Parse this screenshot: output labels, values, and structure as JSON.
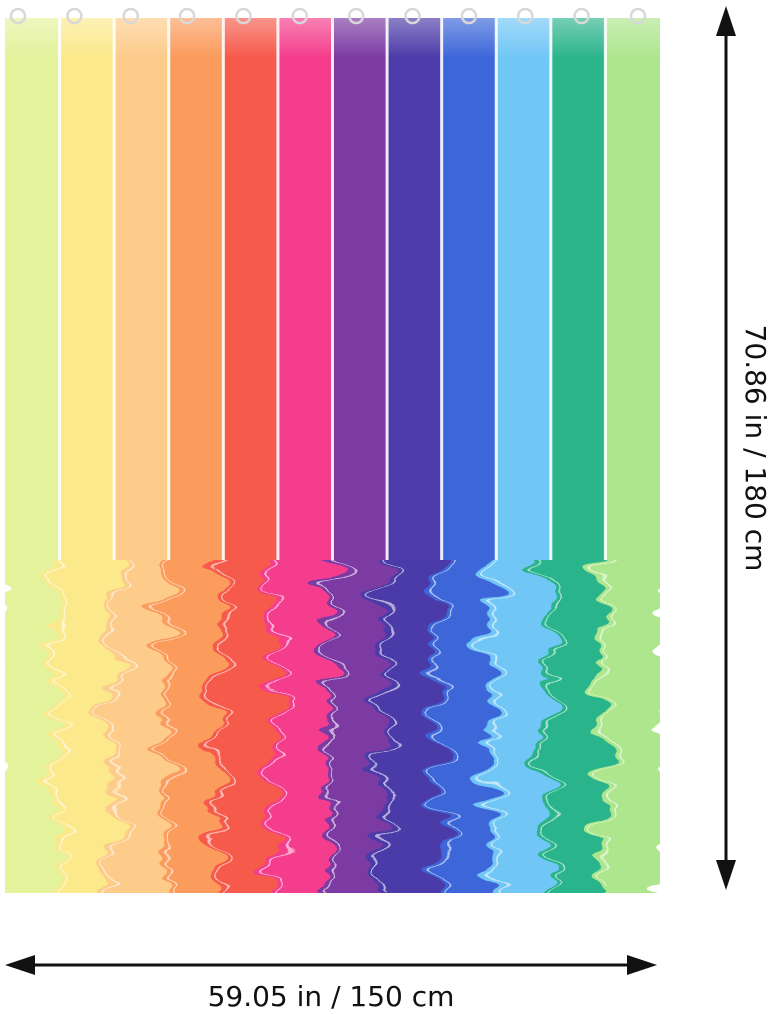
{
  "dimensions": {
    "height_label": "70.86 in / 180 cm",
    "width_label": "59.05 in / 150 cm"
  }
}
